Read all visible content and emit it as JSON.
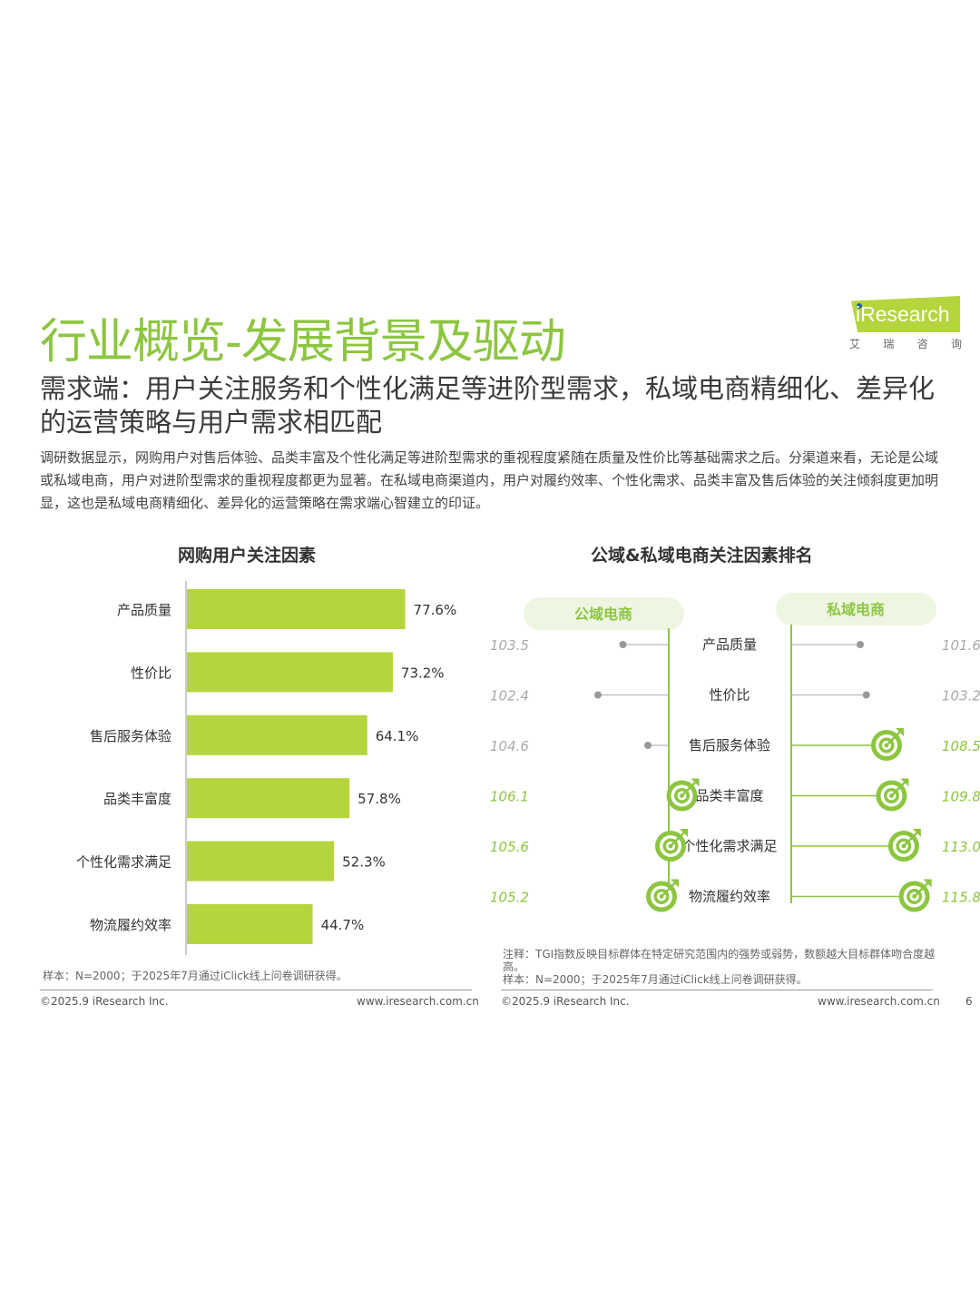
{
  "header": {
    "title": "行业概览-发展背景及驱动",
    "subtitle": "需求端：用户关注服务和个性化满足等进阶型需求，私域电商精细化、差异化的运营策略与用户需求相匹配",
    "intro": "调研数据显示，网购用户对售后体验、品类丰富及个性化满足等进阶型需求的重视程度紧随在质量及性价比等基础需求之后。分渠道来看，无论是公域或私域电商，用户对进阶型需求的重视程度都更为显著。在私域电商渠道内，用户对履约效率、个性化需求、品类丰富及售后体验的关注倾斜度更加明显，这也是私域电商精细化、差异化的运营策略在需求端心智建立的印证。"
  },
  "logo": {
    "text": "iResearch",
    "sub": [
      "艾",
      "瑞",
      "咨",
      "询"
    ],
    "color": "#b4d53c"
  },
  "colors": {
    "accent": "#8cc63f",
    "bar": "#b4d53c",
    "muted": "#aaaaaa"
  },
  "chart_data": [
    {
      "type": "bar",
      "orientation": "horizontal",
      "title": "网购用户关注因素",
      "categories": [
        "产品质量",
        "性价比",
        "售后服务体验",
        "品类丰富度",
        "个性化需求满足",
        "物流履约效率"
      ],
      "values": [
        77.6,
        73.2,
        64.1,
        57.8,
        52.3,
        44.7
      ],
      "value_labels": [
        "77.6%",
        "73.2%",
        "64.1%",
        "57.8%",
        "52.3%",
        "44.7%"
      ],
      "unit": "%",
      "xlim": [
        0,
        100
      ]
    },
    {
      "type": "scatter",
      "title": "公域&私域电商关注因素排名",
      "categories": [
        "产品质量",
        "性价比",
        "售后服务体验",
        "品类丰富度",
        "个性化需求满足",
        "物流履约效率"
      ],
      "series": [
        {
          "name": "公域电商",
          "values": [
            103.5,
            102.4,
            104.6,
            106.1,
            105.6,
            105.2
          ],
          "labels": [
            "103.5",
            "102.4",
            "104.6",
            "106.1",
            "105.6",
            "105.2"
          ],
          "highlight": [
            false,
            false,
            false,
            true,
            true,
            true
          ]
        },
        {
          "name": "私域电商",
          "values": [
            101.6,
            103.2,
            108.5,
            109.8,
            113.0,
            115.8
          ],
          "labels": [
            "101.6",
            "103.2",
            "108.5",
            "109.8",
            "113.0",
            "115.8"
          ],
          "highlight": [
            false,
            false,
            true,
            true,
            true,
            true
          ]
        }
      ]
    }
  ],
  "notes": {
    "left_sample": "样本：N=2000；于2025年7月通过iClick线上问卷调研获得。",
    "right_note": "注释：TGI指数反映目标群体在特定研究范围内的强势或弱势，数额越大目标群体吻合度越高。",
    "right_sample": "样本：N=2000；于2025年7月通过iClick线上问卷调研获得。"
  },
  "footer": {
    "copyright": "©2025.9 iResearch Inc.",
    "website": "www.iresearch.com.cn",
    "page_number": "6"
  }
}
